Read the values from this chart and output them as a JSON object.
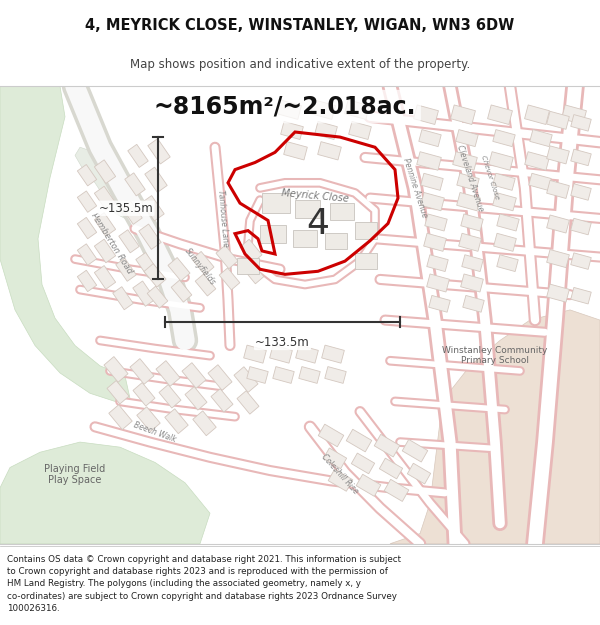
{
  "title_line1": "4, MEYRICK CLOSE, WINSTANLEY, WIGAN, WN3 6DW",
  "title_line2": "Map shows position and indicative extent of the property.",
  "area_text": "~8165m²/~2.018ac.",
  "dim_vertical": "~135.5m",
  "dim_horizontal": "~133.5m",
  "label_number": "4",
  "label_street": "Meyrick Close",
  "footer_text": "Contains OS data © Crown copyright and database right 2021. This information is subject\nto Crown copyright and database rights 2023 and is reproduced with the permission of\nHM Land Registry. The polygons (including the associated geometry, namely x, y\nco-ordinates) are subject to Crown copyright and database rights 2023 Ordnance Survey\n100026316.",
  "map_bg": "#f9f8f6",
  "road_fill": "#ffffff",
  "road_edge": "#e8b8b8",
  "building_fill": "#f0ece8",
  "building_edge": "#d4c8c0",
  "green_fill": "#deebd8",
  "green_edge": "#c8dcc0",
  "beige_fill": "#ede0d4",
  "highlight_color": "#cc0000",
  "title_bg": "#ffffff",
  "footer_bg": "#ffffff",
  "dim_color": "#333333",
  "label_color": "#555555",
  "road_label_color": "#888888"
}
